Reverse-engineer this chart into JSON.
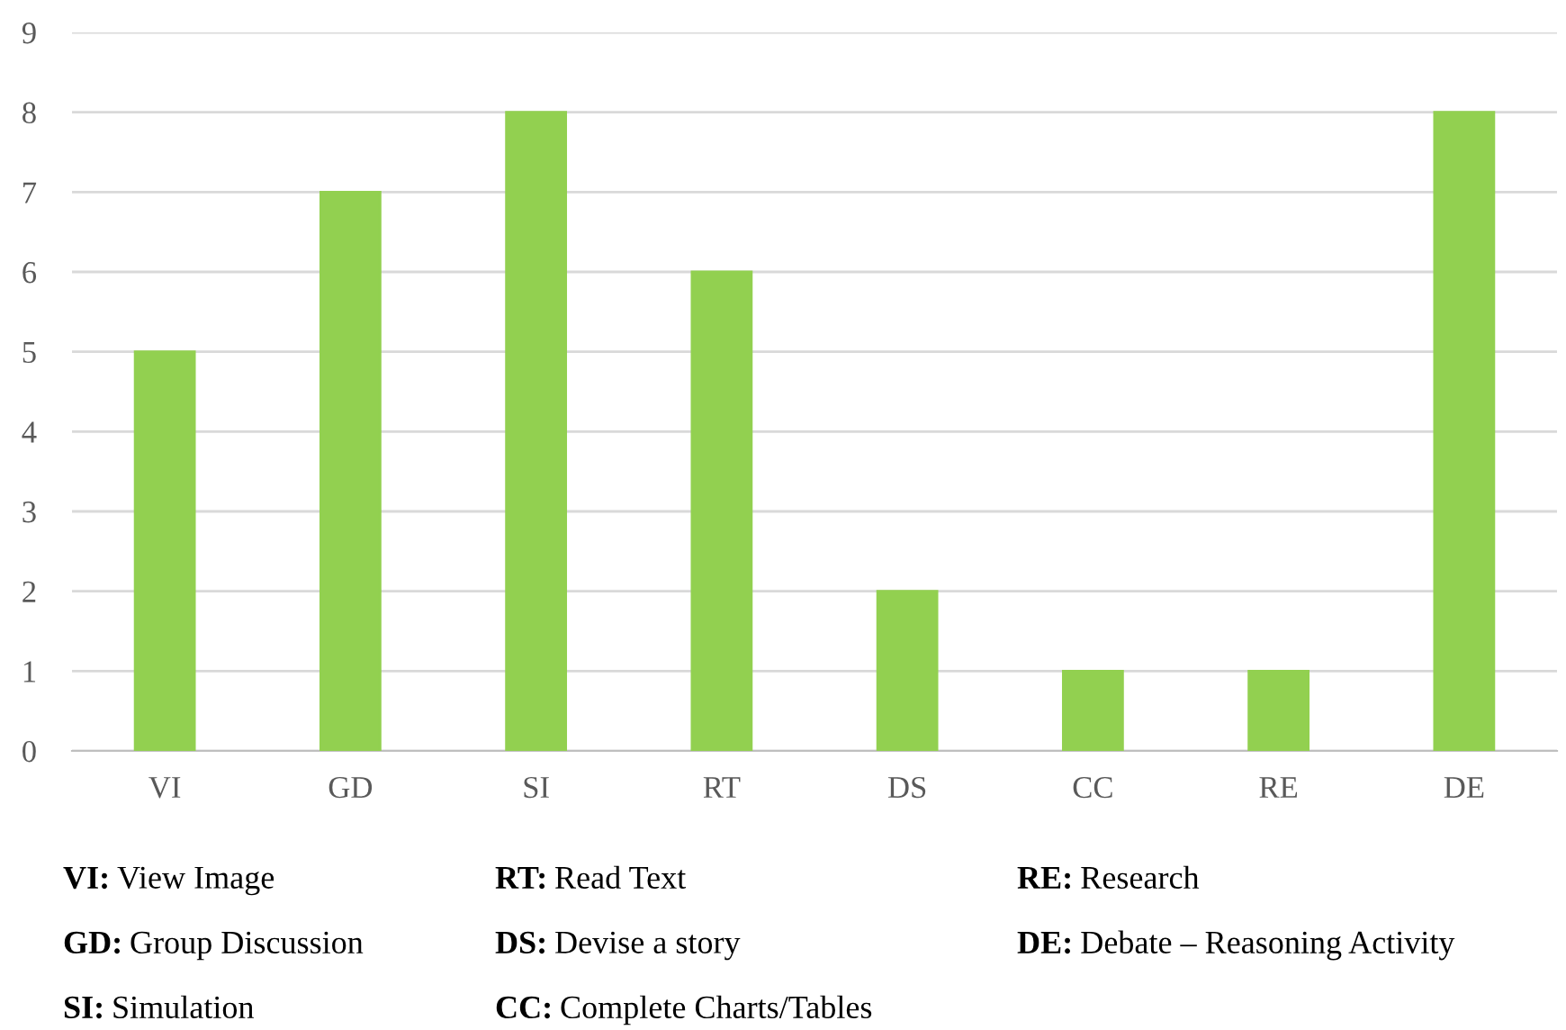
{
  "chart_data": {
    "type": "bar",
    "categories": [
      "VI",
      "GD",
      "SI",
      "RT",
      "DS",
      "CC",
      "RE",
      "DE"
    ],
    "values": [
      5,
      7,
      8,
      6,
      2,
      1,
      1,
      8
    ],
    "color": "#92d050",
    "ylim": [
      0,
      9
    ],
    "yticks": [
      0,
      1,
      2,
      3,
      4,
      5,
      6,
      7,
      8,
      9
    ],
    "grid": "y",
    "legend": false,
    "annotations": [
      "VI: View Image",
      "GD: Group Discussion",
      "SI: Simulation",
      "RT: Read Text",
      "DS: Devise a story",
      "CC: Complete Charts/Tables",
      "RE: Research",
      "DE: Debate – Reasoning Activity"
    ]
  }
}
